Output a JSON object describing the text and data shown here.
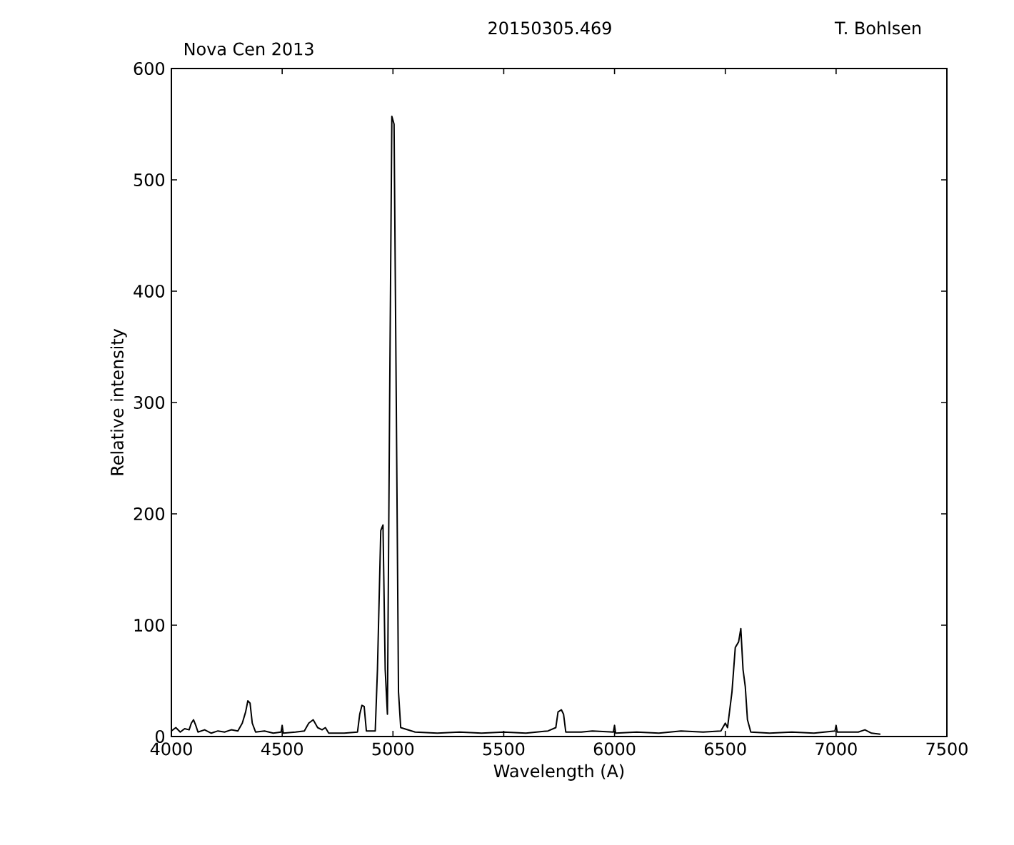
{
  "chart_data": {
    "type": "line",
    "title": "Nova Cen 2013",
    "annotations": [
      "20150305.469",
      "T. Bohlsen"
    ],
    "xlabel": "Wavelength (A)",
    "ylabel": "Relative intensity",
    "xlim": [
      4000,
      7500
    ],
    "ylim": [
      0,
      600
    ],
    "xticks": [
      4000,
      4500,
      5000,
      5500,
      6000,
      6500,
      7000,
      7500
    ],
    "yticks": [
      0,
      100,
      200,
      300,
      400,
      500,
      600
    ],
    "grid": false,
    "marker": "none",
    "line_style": "solid",
    "series": [
      {
        "color": "#000000",
        "x": [
          4000,
          4020,
          4040,
          4060,
          4080,
          4090,
          4100,
          4110,
          4120,
          4150,
          4180,
          4210,
          4240,
          4270,
          4300,
          4320,
          4335,
          4345,
          4355,
          4365,
          4380,
          4420,
          4460,
          4495,
          4500,
          4505,
          4560,
          4600,
          4620,
          4640,
          4660,
          4680,
          4695,
          4710,
          4780,
          4840,
          4850,
          4860,
          4870,
          4880,
          4920,
          4930,
          4945,
          4955,
          4965,
          4975,
          4985,
          4995,
          5005,
          5015,
          5025,
          5035,
          5100,
          5200,
          5300,
          5400,
          5500,
          5600,
          5700,
          5735,
          5745,
          5760,
          5770,
          5780,
          5850,
          5900,
          5995,
          6000,
          6005,
          6100,
          6200,
          6300,
          6400,
          6480,
          6500,
          6510,
          6530,
          6545,
          6560,
          6570,
          6580,
          6590,
          6600,
          6615,
          6700,
          6800,
          6900,
          6995,
          7000,
          7005,
          7100,
          7130,
          7160,
          7200
        ],
        "values": [
          5,
          8,
          4,
          7,
          6,
          12,
          15,
          10,
          4,
          6,
          3,
          5,
          4,
          6,
          5,
          12,
          22,
          32,
          30,
          12,
          4,
          5,
          3,
          4,
          10,
          3,
          4,
          5,
          12,
          15,
          8,
          6,
          8,
          3,
          3,
          4,
          20,
          28,
          27,
          5,
          5,
          60,
          185,
          190,
          60,
          20,
          300,
          557,
          550,
          300,
          40,
          8,
          4,
          3,
          4,
          3,
          4,
          3,
          5,
          8,
          22,
          24,
          20,
          4,
          4,
          5,
          4,
          10,
          3,
          4,
          3,
          5,
          4,
          5,
          12,
          8,
          40,
          80,
          85,
          97,
          60,
          45,
          15,
          4,
          3,
          4,
          3,
          5,
          10,
          4,
          4,
          6,
          3,
          2
        ]
      }
    ]
  }
}
